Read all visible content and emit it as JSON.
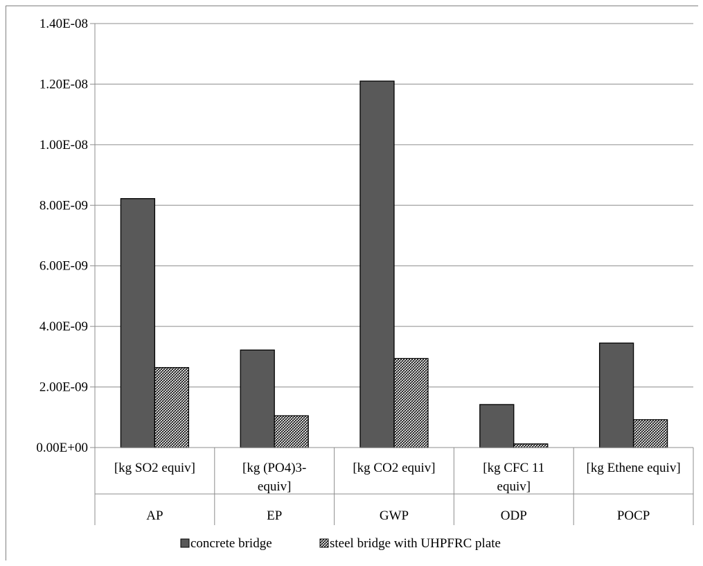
{
  "chart_data": {
    "type": "bar",
    "title": "",
    "xlabel": "",
    "ylabel": "",
    "ylim": [
      0,
      1.4e-08
    ],
    "yticks": [
      {
        "value": 0,
        "label": "0.00E+00"
      },
      {
        "value": 2e-09,
        "label": "2.00E-09"
      },
      {
        "value": 4e-09,
        "label": "4.00E-09"
      },
      {
        "value": 6e-09,
        "label": "6.00E-09"
      },
      {
        "value": 8e-09,
        "label": "8.00E-09"
      },
      {
        "value": 1e-08,
        "label": "1.00E-08"
      },
      {
        "value": 1.2e-08,
        "label": "1.20E-08"
      },
      {
        "value": 1.4e-08,
        "label": "1.40E-08"
      }
    ],
    "grid": true,
    "legend_position": "bottom",
    "categories": [
      {
        "name": "AP",
        "unit_lines": [
          "[kg SO2 equiv]"
        ]
      },
      {
        "name": "EP",
        "unit_lines": [
          "[kg (PO4)3-",
          "equiv]"
        ]
      },
      {
        "name": "GWP",
        "unit_lines": [
          "[kg CO2 equiv]"
        ]
      },
      {
        "name": "ODP",
        "unit_lines": [
          "[kg CFC 11",
          "equiv]"
        ]
      },
      {
        "name": "POCP",
        "unit_lines": [
          "[kg Ethene equiv]"
        ]
      }
    ],
    "series": [
      {
        "name": "concrete bridge",
        "color": "#595959",
        "pattern": "solid",
        "values": [
          8.22e-09,
          3.22e-09,
          1.21e-08,
          1.42e-09,
          3.45e-09
        ]
      },
      {
        "name": "steel bridge with UHPFRC plate",
        "color": "#ffffff",
        "pattern": "diagonal-hatch",
        "values": [
          2.64e-09,
          1.05e-09,
          2.94e-09,
          1.2e-10,
          9.2e-10
        ]
      }
    ]
  }
}
